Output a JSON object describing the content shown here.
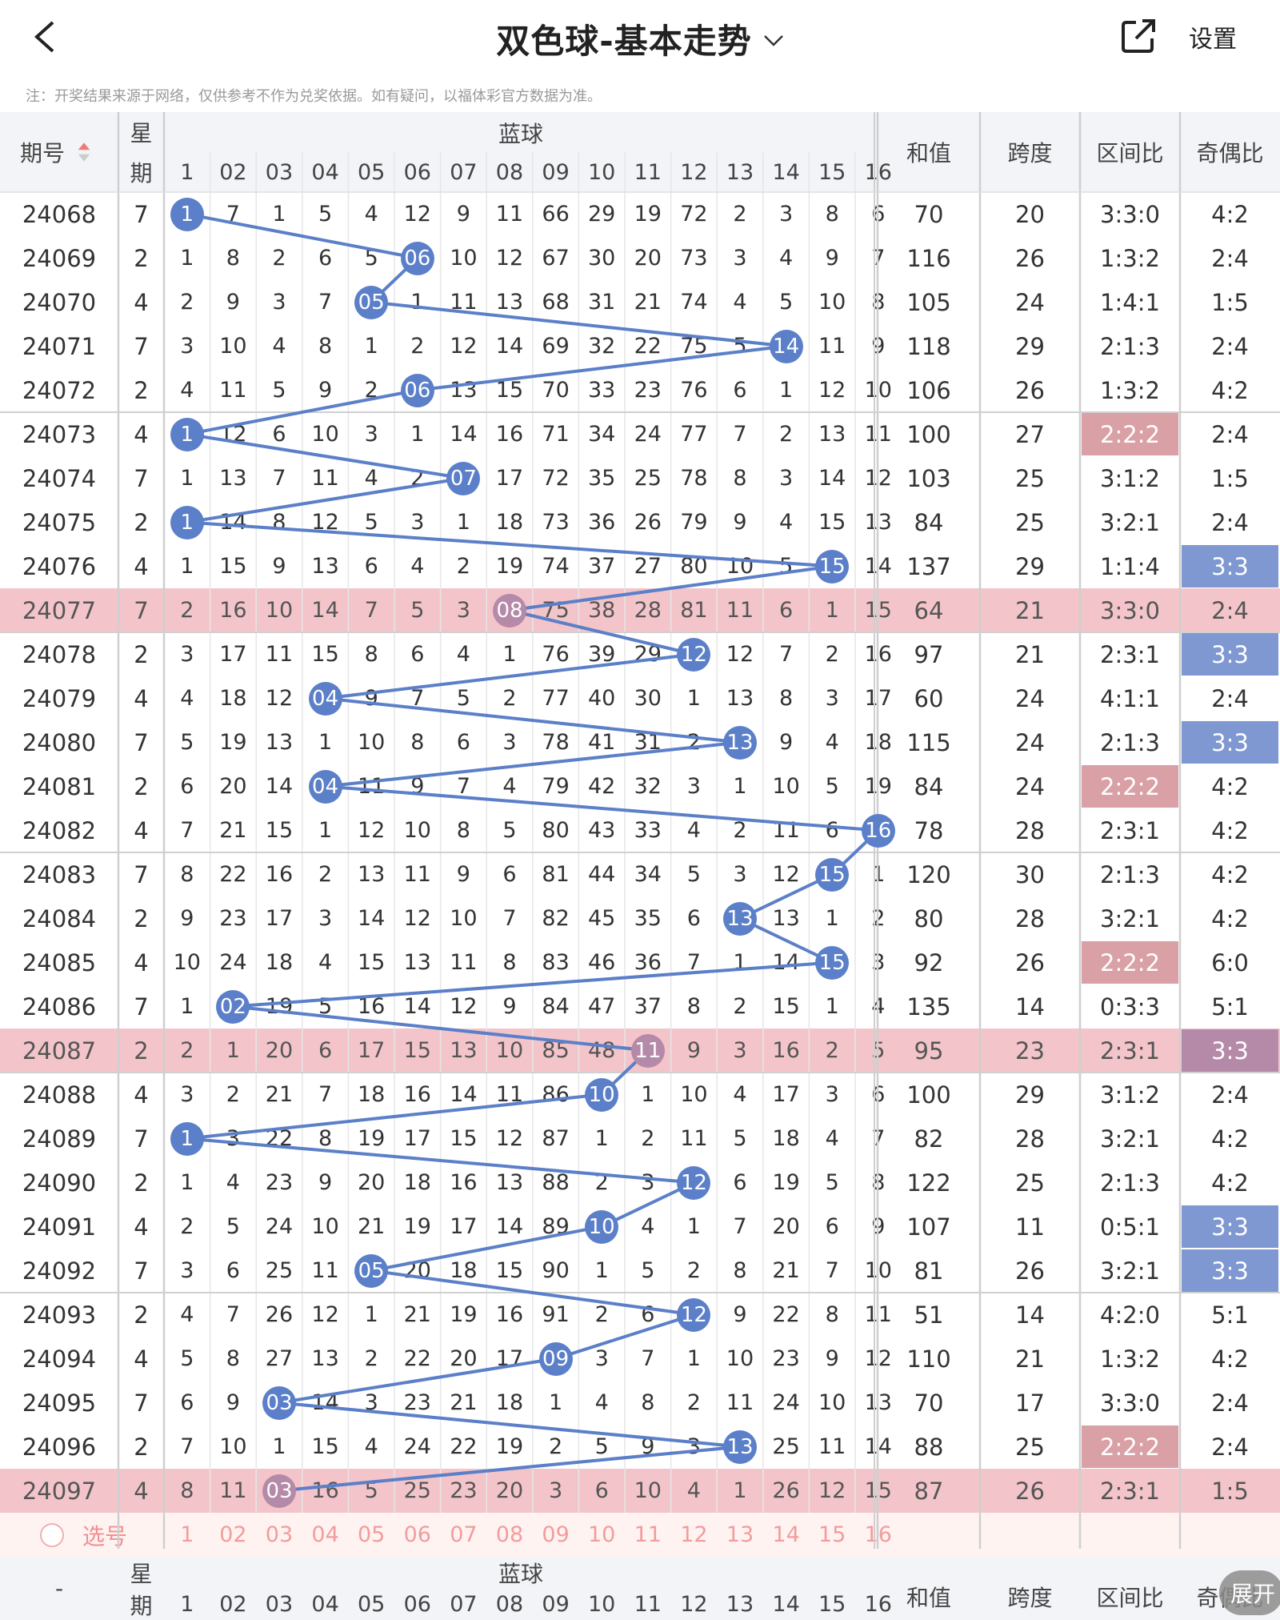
{
  "header": {
    "title": "双色球-基本走势",
    "settings_label": "设置"
  },
  "note": "注：开奖结果来源于网络，仅供参考不作为兑奖依据。如有疑问，以福体彩官方数据为准。",
  "columns": {
    "issue": "期号",
    "week_top": "星",
    "week_bottom": "期",
    "blue_group": "蓝球",
    "sum": "和值",
    "span": "跨度",
    "zone_ratio": "区间比",
    "odd_even": "奇偶比",
    "blue_numbers": [
      "1",
      "02",
      "03",
      "04",
      "05",
      "06",
      "07",
      "08",
      "09",
      "10",
      "11",
      "12",
      "13",
      "14",
      "15",
      "16"
    ]
  },
  "colors": {
    "ball": "#5b7fc8",
    "ball_highlight": "#b58aa8",
    "row_highlight": "#f3c5ca",
    "ratio_pink": "#d9a0a6",
    "ratio_blue": "#7f98d2",
    "ratio_purple": "#b58aa8"
  },
  "rows": [
    {
      "issue": "24068",
      "week": "7",
      "cells": [
        "1",
        "7",
        "1",
        "5",
        "4",
        "12",
        "9",
        "11",
        "66",
        "29",
        "19",
        "72",
        "2",
        "3",
        "8",
        "6"
      ],
      "blue": 1,
      "sum": "70",
      "span": "20",
      "zone": "3:3:0",
      "oe": "4:2"
    },
    {
      "issue": "24069",
      "week": "2",
      "cells": [
        "1",
        "8",
        "2",
        "6",
        "5",
        "06",
        "10",
        "12",
        "67",
        "30",
        "20",
        "73",
        "3",
        "4",
        "9",
        "7"
      ],
      "blue": 6,
      "sum": "116",
      "span": "26",
      "zone": "1:3:2",
      "oe": "2:4"
    },
    {
      "issue": "24070",
      "week": "4",
      "cells": [
        "2",
        "9",
        "3",
        "7",
        "05",
        "1",
        "11",
        "13",
        "68",
        "31",
        "21",
        "74",
        "4",
        "5",
        "10",
        "8"
      ],
      "blue": 5,
      "sum": "105",
      "span": "24",
      "zone": "1:4:1",
      "oe": "1:5"
    },
    {
      "issue": "24071",
      "week": "7",
      "cells": [
        "3",
        "10",
        "4",
        "8",
        "1",
        "2",
        "12",
        "14",
        "69",
        "32",
        "22",
        "75",
        "5",
        "14",
        "11",
        "9"
      ],
      "blue": 14,
      "sum": "118",
      "span": "29",
      "zone": "2:1:3",
      "oe": "2:4"
    },
    {
      "issue": "24072",
      "week": "2",
      "cells": [
        "4",
        "11",
        "5",
        "9",
        "2",
        "06",
        "13",
        "15",
        "70",
        "33",
        "23",
        "76",
        "6",
        "1",
        "12",
        "10"
      ],
      "blue": 6,
      "sum": "106",
      "span": "26",
      "zone": "1:3:2",
      "oe": "4:2"
    },
    {
      "issue": "24073",
      "week": "4",
      "cells": [
        "1",
        "12",
        "6",
        "10",
        "3",
        "1",
        "14",
        "16",
        "71",
        "34",
        "24",
        "77",
        "7",
        "2",
        "13",
        "11"
      ],
      "blue": 1,
      "sum": "100",
      "span": "27",
      "zone": "2:2:2",
      "zone_color": "pink",
      "oe": "2:4"
    },
    {
      "issue": "24074",
      "week": "7",
      "cells": [
        "1",
        "13",
        "7",
        "11",
        "4",
        "2",
        "07",
        "17",
        "72",
        "35",
        "25",
        "78",
        "8",
        "3",
        "14",
        "12"
      ],
      "blue": 7,
      "sum": "103",
      "span": "25",
      "zone": "3:1:2",
      "oe": "1:5"
    },
    {
      "issue": "24075",
      "week": "2",
      "cells": [
        "1",
        "14",
        "8",
        "12",
        "5",
        "3",
        "1",
        "18",
        "73",
        "36",
        "26",
        "79",
        "9",
        "4",
        "15",
        "13"
      ],
      "blue": 1,
      "sum": "84",
      "span": "25",
      "zone": "3:2:1",
      "oe": "2:4"
    },
    {
      "issue": "24076",
      "week": "4",
      "cells": [
        "1",
        "15",
        "9",
        "13",
        "6",
        "4",
        "2",
        "19",
        "74",
        "37",
        "27",
        "80",
        "10",
        "5",
        "15",
        "14"
      ],
      "blue": 15,
      "sum": "137",
      "span": "29",
      "zone": "1:1:4",
      "oe": "3:3",
      "oe_color": "blue"
    },
    {
      "issue": "24077",
      "week": "7",
      "cells": [
        "2",
        "16",
        "10",
        "14",
        "7",
        "5",
        "3",
        "08",
        "75",
        "38",
        "28",
        "81",
        "11",
        "6",
        "1",
        "15"
      ],
      "blue": 8,
      "sum": "64",
      "span": "21",
      "zone": "3:3:0",
      "oe": "2:4",
      "highlight": true
    },
    {
      "issue": "24078",
      "week": "2",
      "cells": [
        "3",
        "17",
        "11",
        "15",
        "8",
        "6",
        "4",
        "1",
        "76",
        "39",
        "29",
        "12",
        "12",
        "7",
        "2",
        "16"
      ],
      "blue": 12,
      "sum": "97",
      "span": "21",
      "zone": "2:3:1",
      "oe": "3:3",
      "oe_color": "blue"
    },
    {
      "issue": "24079",
      "week": "4",
      "cells": [
        "4",
        "18",
        "12",
        "04",
        "9",
        "7",
        "5",
        "2",
        "77",
        "40",
        "30",
        "1",
        "13",
        "8",
        "3",
        "17"
      ],
      "blue": 4,
      "sum": "60",
      "span": "24",
      "zone": "4:1:1",
      "oe": "2:4"
    },
    {
      "issue": "24080",
      "week": "7",
      "cells": [
        "5",
        "19",
        "13",
        "1",
        "10",
        "8",
        "6",
        "3",
        "78",
        "41",
        "31",
        "2",
        "13",
        "9",
        "4",
        "18"
      ],
      "blue": 13,
      "sum": "115",
      "span": "24",
      "zone": "2:1:3",
      "oe": "3:3",
      "oe_color": "blue"
    },
    {
      "issue": "24081",
      "week": "2",
      "cells": [
        "6",
        "20",
        "14",
        "04",
        "11",
        "9",
        "7",
        "4",
        "79",
        "42",
        "32",
        "3",
        "1",
        "10",
        "5",
        "19"
      ],
      "blue": 4,
      "sum": "84",
      "span": "24",
      "zone": "2:2:2",
      "zone_color": "pink",
      "oe": "4:2"
    },
    {
      "issue": "24082",
      "week": "4",
      "cells": [
        "7",
        "21",
        "15",
        "1",
        "12",
        "10",
        "8",
        "5",
        "80",
        "43",
        "33",
        "4",
        "2",
        "11",
        "6",
        "16"
      ],
      "blue": 16,
      "sum": "78",
      "span": "28",
      "zone": "2:3:1",
      "oe": "4:2"
    },
    {
      "issue": "24083",
      "week": "7",
      "cells": [
        "8",
        "22",
        "16",
        "2",
        "13",
        "11",
        "9",
        "6",
        "81",
        "44",
        "34",
        "5",
        "3",
        "12",
        "15",
        "1"
      ],
      "blue": 15,
      "sum": "120",
      "span": "30",
      "zone": "2:1:3",
      "oe": "4:2"
    },
    {
      "issue": "24084",
      "week": "2",
      "cells": [
        "9",
        "23",
        "17",
        "3",
        "14",
        "12",
        "10",
        "7",
        "82",
        "45",
        "35",
        "6",
        "13",
        "13",
        "1",
        "2"
      ],
      "blue": 13,
      "sum": "80",
      "span": "28",
      "zone": "3:2:1",
      "oe": "4:2"
    },
    {
      "issue": "24085",
      "week": "4",
      "cells": [
        "10",
        "24",
        "18",
        "4",
        "15",
        "13",
        "11",
        "8",
        "83",
        "46",
        "36",
        "7",
        "1",
        "14",
        "15",
        "3"
      ],
      "blue": 15,
      "sum": "92",
      "span": "26",
      "zone": "2:2:2",
      "zone_color": "pink",
      "oe": "6:0"
    },
    {
      "issue": "24086",
      "week": "7",
      "cells": [
        "1",
        "02",
        "19",
        "5",
        "16",
        "14",
        "12",
        "9",
        "84",
        "47",
        "37",
        "8",
        "2",
        "15",
        "1",
        "4"
      ],
      "blue": 2,
      "sum": "135",
      "span": "14",
      "zone": "0:3:3",
      "oe": "5:1"
    },
    {
      "issue": "24087",
      "week": "2",
      "cells": [
        "2",
        "1",
        "20",
        "6",
        "17",
        "15",
        "13",
        "10",
        "85",
        "48",
        "11",
        "9",
        "3",
        "16",
        "2",
        "5"
      ],
      "blue": 11,
      "sum": "95",
      "span": "23",
      "zone": "2:3:1",
      "oe": "3:3",
      "oe_color": "purple",
      "highlight": true
    },
    {
      "issue": "24088",
      "week": "4",
      "cells": [
        "3",
        "2",
        "21",
        "7",
        "18",
        "16",
        "14",
        "11",
        "86",
        "10",
        "1",
        "10",
        "4",
        "17",
        "3",
        "6"
      ],
      "blue": 10,
      "sum": "100",
      "span": "29",
      "zone": "3:1:2",
      "oe": "2:4"
    },
    {
      "issue": "24089",
      "week": "7",
      "cells": [
        "1",
        "3",
        "22",
        "8",
        "19",
        "17",
        "15",
        "12",
        "87",
        "1",
        "2",
        "11",
        "5",
        "18",
        "4",
        "7"
      ],
      "blue": 1,
      "sum": "82",
      "span": "28",
      "zone": "3:2:1",
      "oe": "4:2"
    },
    {
      "issue": "24090",
      "week": "2",
      "cells": [
        "1",
        "4",
        "23",
        "9",
        "20",
        "18",
        "16",
        "13",
        "88",
        "2",
        "3",
        "12",
        "6",
        "19",
        "5",
        "8"
      ],
      "blue": 12,
      "sum": "122",
      "span": "25",
      "zone": "2:1:3",
      "oe": "4:2"
    },
    {
      "issue": "24091",
      "week": "4",
      "cells": [
        "2",
        "5",
        "24",
        "10",
        "21",
        "19",
        "17",
        "14",
        "89",
        "10",
        "4",
        "1",
        "7",
        "20",
        "6",
        "9"
      ],
      "blue": 10,
      "sum": "107",
      "span": "11",
      "zone": "0:5:1",
      "oe": "3:3",
      "oe_color": "blue"
    },
    {
      "issue": "24092",
      "week": "7",
      "cells": [
        "3",
        "6",
        "25",
        "11",
        "05",
        "20",
        "18",
        "15",
        "90",
        "1",
        "5",
        "2",
        "8",
        "21",
        "7",
        "10"
      ],
      "blue": 5,
      "sum": "81",
      "span": "26",
      "zone": "3:2:1",
      "oe": "3:3",
      "oe_color": "blue"
    },
    {
      "issue": "24093",
      "week": "2",
      "cells": [
        "4",
        "7",
        "26",
        "12",
        "1",
        "21",
        "19",
        "16",
        "91",
        "2",
        "6",
        "12",
        "9",
        "22",
        "8",
        "11"
      ],
      "blue": 12,
      "sum": "51",
      "span": "14",
      "zone": "4:2:0",
      "oe": "5:1"
    },
    {
      "issue": "24094",
      "week": "4",
      "cells": [
        "5",
        "8",
        "27",
        "13",
        "2",
        "22",
        "20",
        "17",
        "09",
        "3",
        "7",
        "1",
        "10",
        "23",
        "9",
        "12"
      ],
      "blue": 9,
      "sum": "110",
      "span": "21",
      "zone": "1:3:2",
      "oe": "4:2"
    },
    {
      "issue": "24095",
      "week": "7",
      "cells": [
        "6",
        "9",
        "03",
        "14",
        "3",
        "23",
        "21",
        "18",
        "1",
        "4",
        "8",
        "2",
        "11",
        "24",
        "10",
        "13"
      ],
      "blue": 3,
      "sum": "70",
      "span": "17",
      "zone": "3:3:0",
      "oe": "2:4"
    },
    {
      "issue": "24096",
      "week": "2",
      "cells": [
        "7",
        "10",
        "1",
        "15",
        "4",
        "24",
        "22",
        "19",
        "2",
        "5",
        "9",
        "3",
        "13",
        "25",
        "11",
        "14"
      ],
      "blue": 13,
      "sum": "88",
      "span": "25",
      "zone": "2:2:2",
      "zone_color": "pink",
      "oe": "2:4"
    },
    {
      "issue": "24097",
      "week": "4",
      "cells": [
        "8",
        "11",
        "03",
        "16",
        "5",
        "25",
        "23",
        "20",
        "3",
        "6",
        "10",
        "4",
        "1",
        "26",
        "12",
        "15"
      ],
      "blue": 3,
      "sum": "87",
      "span": "26",
      "zone": "2:3:1",
      "oe": "1:5",
      "highlight": true
    }
  ],
  "select_row": {
    "label": "选号"
  },
  "footer_issue": "-",
  "fab_label": "展开"
}
